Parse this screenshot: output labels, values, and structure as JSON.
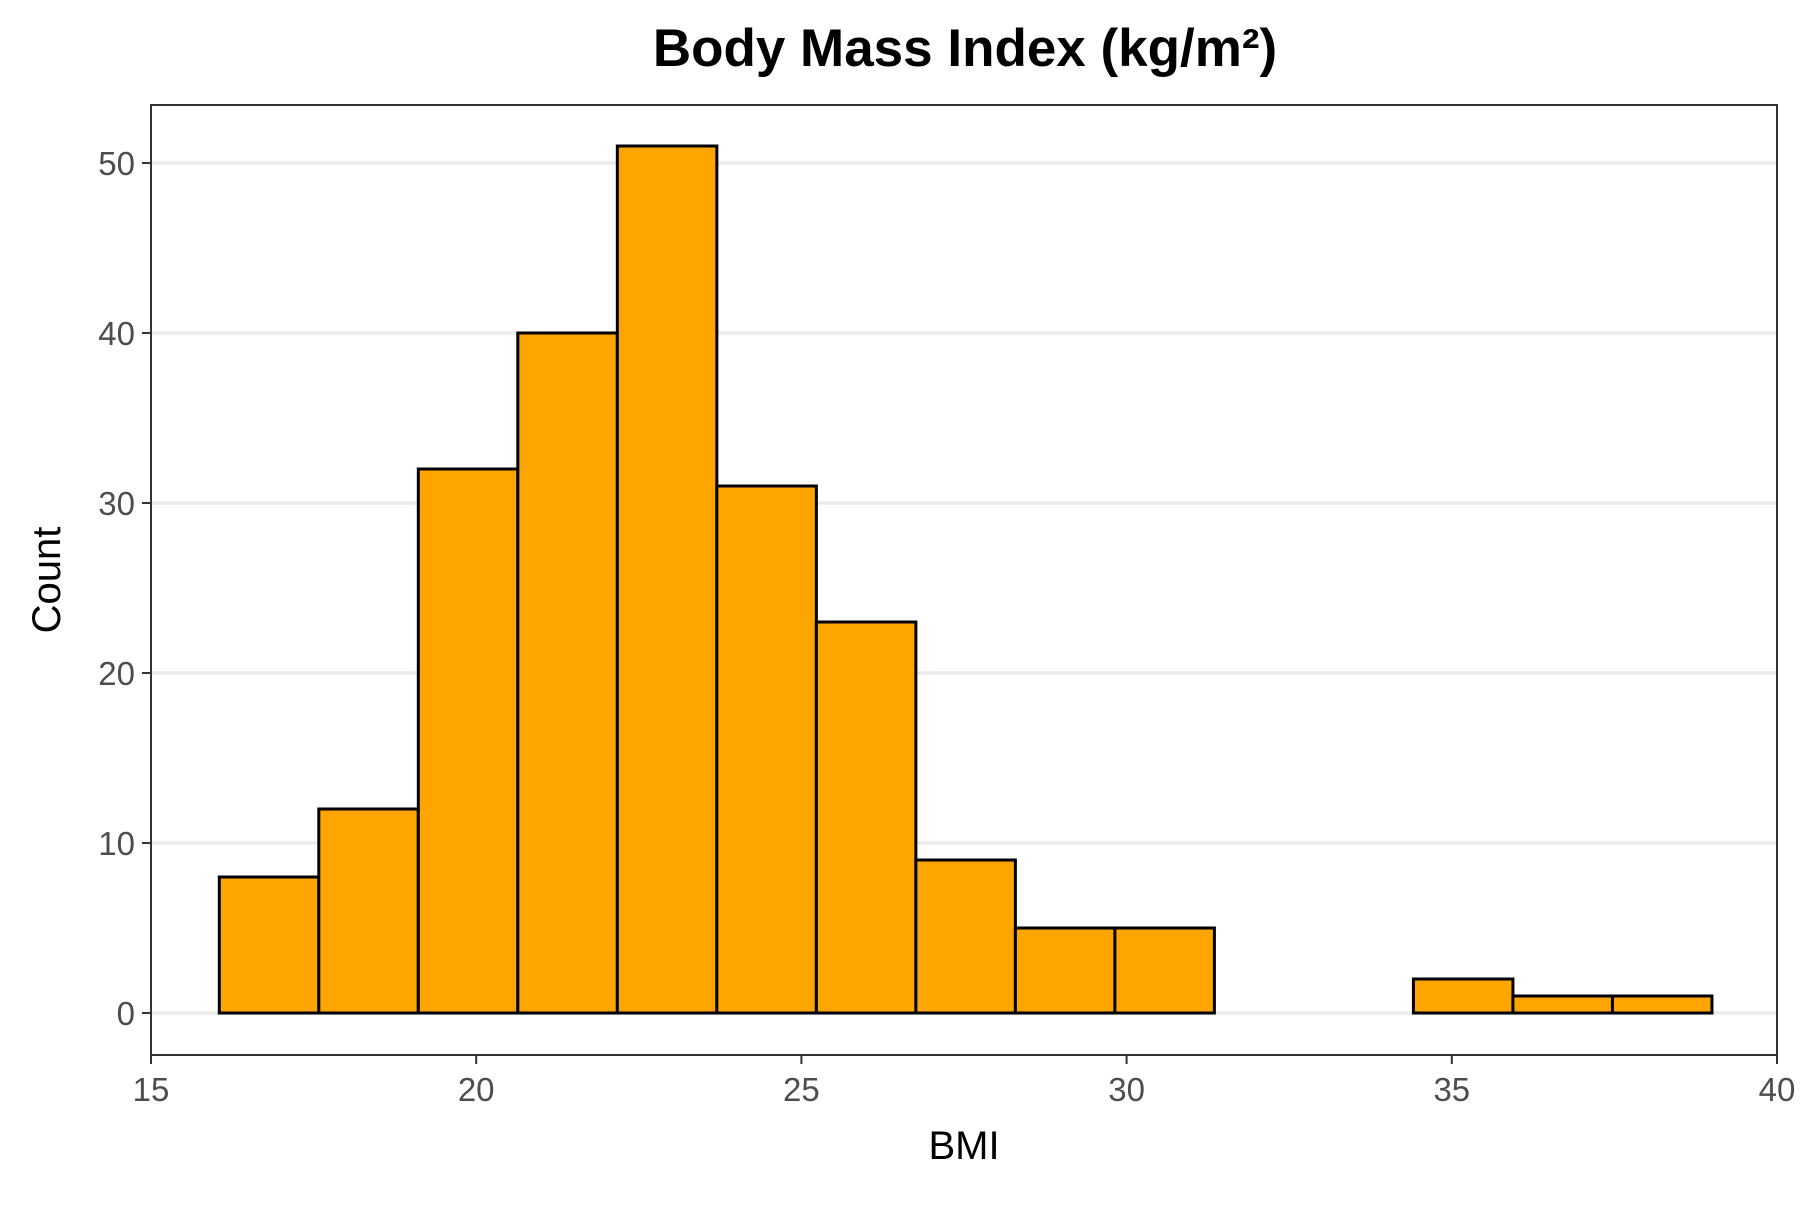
{
  "chart_data": {
    "type": "bar",
    "subtype": "histogram",
    "title": "Body Mass Index (kg/m²)",
    "xlabel": "BMI",
    "ylabel": "Count",
    "xlim": [
      15,
      40
    ],
    "ylim": [
      0,
      53
    ],
    "x_ticks": [
      15,
      20,
      25,
      30,
      35,
      40
    ],
    "y_ticks": [
      0,
      10,
      20,
      30,
      40,
      50
    ],
    "grid": "horizontal major",
    "legend": "none",
    "fill_color": "#FFA500",
    "outline_color": "#000000",
    "bins": [
      {
        "x0": 16.05,
        "x1": 17.58,
        "count": 8
      },
      {
        "x0": 17.58,
        "x1": 19.11,
        "count": 12
      },
      {
        "x0": 19.11,
        "x1": 20.64,
        "count": 32
      },
      {
        "x0": 20.64,
        "x1": 22.17,
        "count": 40
      },
      {
        "x0": 22.17,
        "x1": 23.7,
        "count": 51
      },
      {
        "x0": 23.7,
        "x1": 25.23,
        "count": 31
      },
      {
        "x0": 25.23,
        "x1": 26.76,
        "count": 23
      },
      {
        "x0": 26.76,
        "x1": 28.29,
        "count": 9
      },
      {
        "x0": 28.29,
        "x1": 29.82,
        "count": 5
      },
      {
        "x0": 29.82,
        "x1": 31.35,
        "count": 5
      },
      {
        "x0": 31.35,
        "x1": 32.88,
        "count": 0
      },
      {
        "x0": 32.88,
        "x1": 34.41,
        "count": 0
      },
      {
        "x0": 34.41,
        "x1": 35.94,
        "count": 2
      },
      {
        "x0": 35.94,
        "x1": 37.47,
        "count": 1
      },
      {
        "x0": 37.47,
        "x1": 39.0,
        "count": 1
      }
    ]
  }
}
